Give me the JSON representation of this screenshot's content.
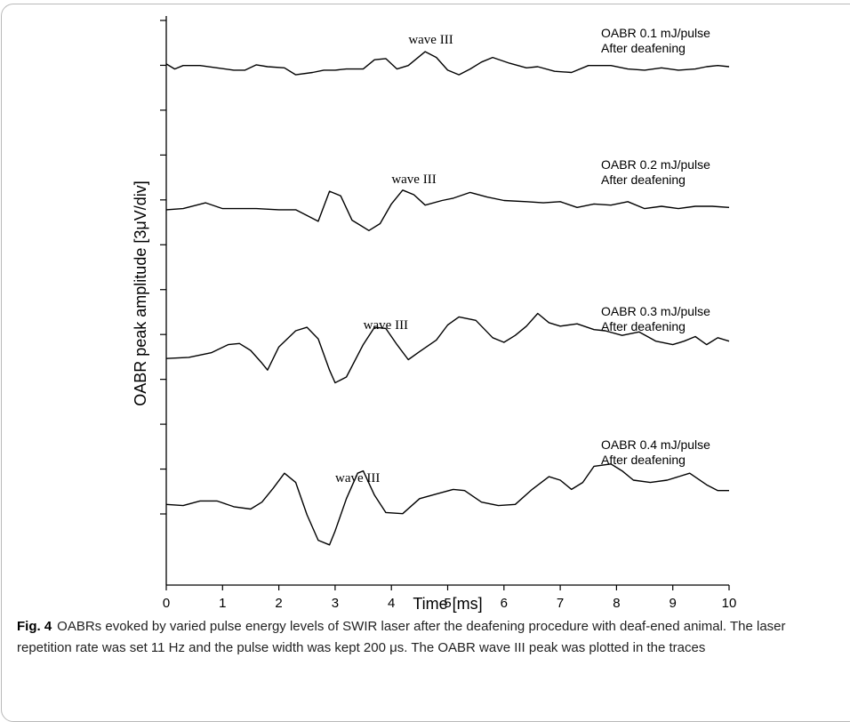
{
  "chart_data": {
    "type": "line",
    "xlabel": "Time [ms]",
    "ylabel": "OABR peak amplitude [3μV/div]",
    "xlim": [
      0,
      10
    ],
    "x_ticks": [
      "0",
      "1",
      "2",
      "3",
      "4",
      "5",
      "6",
      "7",
      "8",
      "9",
      "10"
    ],
    "y_ticks_count": 12,
    "series": [
      {
        "name": "OABR 0.1 mJ/pulse",
        "label_lines": [
          "OABR 0.1 mJ/pulse",
          "After deafening"
        ],
        "annotation": "wave III",
        "annotation_x": 4.7,
        "baseline": 2.1,
        "points": [
          [
            0,
            0.12
          ],
          [
            0.15,
            -0.1
          ],
          [
            0.3,
            0.05
          ],
          [
            0.6,
            0.05
          ],
          [
            0.9,
            -0.05
          ],
          [
            1.2,
            -0.15
          ],
          [
            1.4,
            -0.15
          ],
          [
            1.6,
            0.08
          ],
          [
            1.8,
            0.0
          ],
          [
            2.1,
            -0.05
          ],
          [
            2.3,
            -0.35
          ],
          [
            2.6,
            -0.25
          ],
          [
            2.8,
            -0.15
          ],
          [
            3.0,
            -0.15
          ],
          [
            3.2,
            -0.1
          ],
          [
            3.5,
            -0.1
          ],
          [
            3.7,
            0.3
          ],
          [
            3.9,
            0.35
          ],
          [
            4.1,
            -0.1
          ],
          [
            4.3,
            0.05
          ],
          [
            4.6,
            0.65
          ],
          [
            4.8,
            0.4
          ],
          [
            5.0,
            -0.15
          ],
          [
            5.2,
            -0.35
          ],
          [
            5.4,
            -0.1
          ],
          [
            5.6,
            0.2
          ],
          [
            5.8,
            0.4
          ],
          [
            6.1,
            0.15
          ],
          [
            6.4,
            -0.05
          ],
          [
            6.6,
            0.0
          ],
          [
            6.9,
            -0.2
          ],
          [
            7.2,
            -0.25
          ],
          [
            7.5,
            0.05
          ],
          [
            7.9,
            0.05
          ],
          [
            8.2,
            -0.1
          ],
          [
            8.5,
            -0.15
          ],
          [
            8.8,
            -0.05
          ],
          [
            9.1,
            -0.15
          ],
          [
            9.4,
            -0.1
          ],
          [
            9.6,
            0.0
          ],
          [
            9.8,
            0.05
          ],
          [
            10,
            0.0
          ]
        ]
      },
      {
        "name": "OABR 0.2 mJ/pulse",
        "label_lines": [
          "OABR 0.2 mJ/pulse",
          "After deafening"
        ],
        "annotation": "wave III",
        "annotation_x": 4.4,
        "baseline": 2.1,
        "points": [
          [
            0,
            -0.15
          ],
          [
            0.3,
            -0.1
          ],
          [
            0.7,
            0.15
          ],
          [
            1.0,
            -0.1
          ],
          [
            1.3,
            -0.1
          ],
          [
            1.6,
            -0.1
          ],
          [
            2.0,
            -0.15
          ],
          [
            2.3,
            -0.15
          ],
          [
            2.5,
            -0.4
          ],
          [
            2.7,
            -0.65
          ],
          [
            2.9,
            0.65
          ],
          [
            3.1,
            0.45
          ],
          [
            3.3,
            -0.6
          ],
          [
            3.6,
            -1.05
          ],
          [
            3.8,
            -0.75
          ],
          [
            4.0,
            0.1
          ],
          [
            4.2,
            0.7
          ],
          [
            4.4,
            0.5
          ],
          [
            4.6,
            0.05
          ],
          [
            4.9,
            0.25
          ],
          [
            5.1,
            0.35
          ],
          [
            5.4,
            0.6
          ],
          [
            5.7,
            0.4
          ],
          [
            6.0,
            0.25
          ],
          [
            6.4,
            0.2
          ],
          [
            6.7,
            0.15
          ],
          [
            7.0,
            0.2
          ],
          [
            7.3,
            -0.05
          ],
          [
            7.6,
            0.1
          ],
          [
            7.9,
            0.05
          ],
          [
            8.2,
            0.2
          ],
          [
            8.5,
            -0.1
          ],
          [
            8.8,
            0.0
          ],
          [
            9.1,
            -0.1
          ],
          [
            9.4,
            0.0
          ],
          [
            9.7,
            0.0
          ],
          [
            10,
            -0.05
          ]
        ]
      },
      {
        "name": "OABR 0.3 mJ/pulse",
        "label_lines": [
          "OABR 0.3 mJ/pulse",
          "After deafening"
        ],
        "annotation": "wave III",
        "annotation_x": 3.9,
        "baseline": 2.1,
        "points": [
          [
            0,
            -0.2
          ],
          [
            0.4,
            -0.15
          ],
          [
            0.8,
            0.05
          ],
          [
            1.1,
            0.4
          ],
          [
            1.3,
            0.45
          ],
          [
            1.5,
            0.15
          ],
          [
            1.7,
            -0.4
          ],
          [
            1.8,
            -0.7
          ],
          [
            2.0,
            0.3
          ],
          [
            2.3,
            1.0
          ],
          [
            2.5,
            1.15
          ],
          [
            2.7,
            0.65
          ],
          [
            2.9,
            -0.7
          ],
          [
            3.0,
            -1.25
          ],
          [
            3.2,
            -1.0
          ],
          [
            3.5,
            0.4
          ],
          [
            3.7,
            1.15
          ],
          [
            3.9,
            1.1
          ],
          [
            4.1,
            0.4
          ],
          [
            4.3,
            -0.25
          ],
          [
            4.5,
            0.1
          ],
          [
            4.8,
            0.6
          ],
          [
            5.0,
            1.25
          ],
          [
            5.2,
            1.6
          ],
          [
            5.5,
            1.45
          ],
          [
            5.8,
            0.7
          ],
          [
            6.0,
            0.5
          ],
          [
            6.2,
            0.8
          ],
          [
            6.4,
            1.2
          ],
          [
            6.6,
            1.75
          ],
          [
            6.8,
            1.35
          ],
          [
            7.0,
            1.2
          ],
          [
            7.3,
            1.3
          ],
          [
            7.6,
            1.05
          ],
          [
            7.8,
            1.0
          ],
          [
            8.1,
            0.8
          ],
          [
            8.4,
            0.95
          ],
          [
            8.7,
            0.55
          ],
          [
            9.0,
            0.4
          ],
          [
            9.2,
            0.55
          ],
          [
            9.4,
            0.75
          ],
          [
            9.6,
            0.4
          ],
          [
            9.8,
            0.7
          ],
          [
            10,
            0.55
          ]
        ]
      },
      {
        "name": "OABR 0.4 mJ/pulse",
        "label_lines": [
          "OABR 0.4 mJ/pulse",
          "After deafening"
        ],
        "annotation": "wave III",
        "annotation_x": 3.4,
        "baseline": 2.1,
        "points": [
          [
            0,
            -0.05
          ],
          [
            0.3,
            -0.1
          ],
          [
            0.6,
            0.1
          ],
          [
            0.9,
            0.1
          ],
          [
            1.2,
            -0.15
          ],
          [
            1.5,
            -0.25
          ],
          [
            1.7,
            0.05
          ],
          [
            1.9,
            0.65
          ],
          [
            2.1,
            1.3
          ],
          [
            2.3,
            0.9
          ],
          [
            2.5,
            -0.5
          ],
          [
            2.7,
            -1.6
          ],
          [
            2.9,
            -1.8
          ],
          [
            3.0,
            -1.2
          ],
          [
            3.2,
            0.2
          ],
          [
            3.4,
            1.3
          ],
          [
            3.5,
            1.4
          ],
          [
            3.7,
            0.35
          ],
          [
            3.9,
            -0.4
          ],
          [
            4.2,
            -0.45
          ],
          [
            4.5,
            0.2
          ],
          [
            4.8,
            0.4
          ],
          [
            5.1,
            0.6
          ],
          [
            5.3,
            0.55
          ],
          [
            5.6,
            0.05
          ],
          [
            5.9,
            -0.1
          ],
          [
            6.2,
            -0.05
          ],
          [
            6.5,
            0.6
          ],
          [
            6.8,
            1.15
          ],
          [
            7.0,
            1.0
          ],
          [
            7.2,
            0.6
          ],
          [
            7.4,
            0.9
          ],
          [
            7.6,
            1.6
          ],
          [
            7.9,
            1.7
          ],
          [
            8.1,
            1.4
          ],
          [
            8.3,
            1.0
          ],
          [
            8.6,
            0.9
          ],
          [
            8.9,
            1.0
          ],
          [
            9.3,
            1.3
          ],
          [
            9.6,
            0.8
          ],
          [
            9.8,
            0.55
          ],
          [
            10,
            0.55
          ]
        ]
      }
    ]
  },
  "caption": {
    "label": "Fig. 4",
    "text": "OABRs evoked by varied pulse energy levels of SWIR laser after the deafening procedure with deaf-ened animal. The laser repetition rate was set 11 Hz and the pulse width was kept 200 μs. The OABR wave III peak was plotted in the traces"
  },
  "colors": {
    "trace": "#000000",
    "frame": "#b9b9b9",
    "caption_text": "#222222"
  }
}
